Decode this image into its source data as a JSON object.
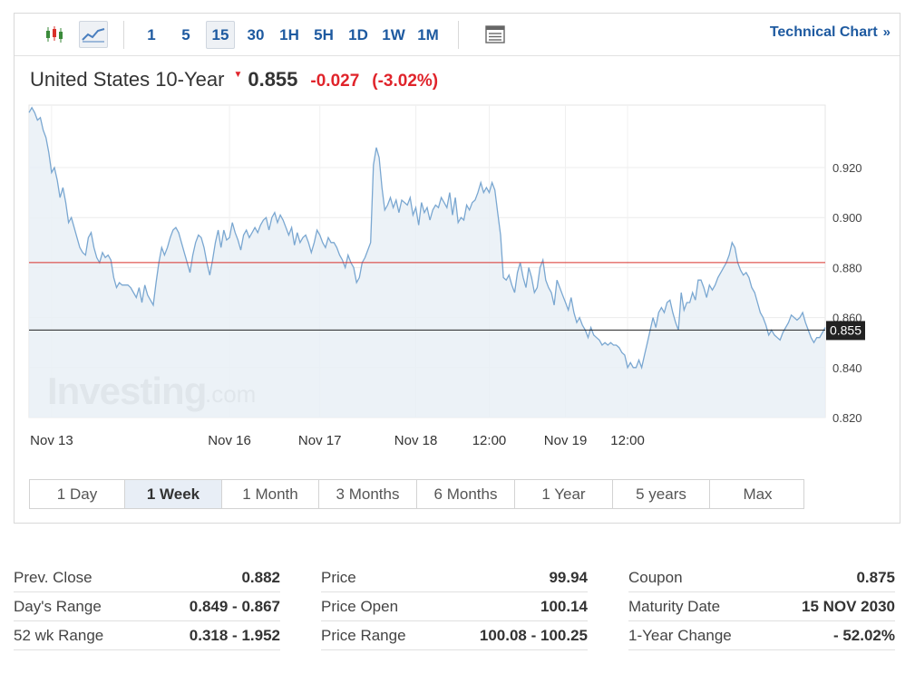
{
  "toolbar": {
    "chart_types": [
      {
        "name": "candlestick-icon",
        "active": false
      },
      {
        "name": "line-chart-icon",
        "active": true
      }
    ],
    "intervals": [
      {
        "label": "1",
        "active": false
      },
      {
        "label": "5",
        "active": false
      },
      {
        "label": "15",
        "active": true
      },
      {
        "label": "30",
        "active": false
      },
      {
        "label": "1H",
        "active": false
      },
      {
        "label": "5H",
        "active": false
      },
      {
        "label": "1D",
        "active": false
      },
      {
        "label": "1W",
        "active": false
      },
      {
        "label": "1M",
        "active": false
      }
    ],
    "table_icon": "table-icon",
    "technical_chart_label": "Technical Chart",
    "technical_chart_arrow": "»"
  },
  "header": {
    "name": "United States 10-Year",
    "price": "0.855",
    "change": "-0.027",
    "change_pct": "(-3.02%)",
    "direction_icon": "down-triangle-icon"
  },
  "chart_data": {
    "type": "area",
    "title": "",
    "xlabel": "",
    "ylabel": "",
    "ylim": [
      0.82,
      0.945
    ],
    "yticks": [
      0.82,
      0.84,
      0.86,
      0.88,
      0.9,
      0.92
    ],
    "ytick_labels": [
      "0.820",
      "0.840",
      "0.860",
      "0.880",
      "0.900",
      "0.920"
    ],
    "x_tick_labels": [
      {
        "label": "Nov 13",
        "index": 8
      },
      {
        "label": "Nov 16",
        "index": 71
      },
      {
        "label": "Nov 17",
        "index": 103
      },
      {
        "label": "Nov 18",
        "index": 137
      },
      {
        "label": "12:00",
        "index": 163
      },
      {
        "label": "Nov 19",
        "index": 190
      },
      {
        "label": "12:00",
        "index": 212
      }
    ],
    "reference_lines": [
      {
        "name": "prev-close-line",
        "value": 0.882,
        "color": "#d9302b"
      },
      {
        "name": "last-price-line",
        "value": 0.855,
        "color": "#222222"
      }
    ],
    "last_price_label": "0.855",
    "grid": true,
    "watermark": {
      "brand": "Investing",
      "suffix": ".com"
    },
    "line_color": "#7aa7d1",
    "fill_color": "#e9f0f6",
    "values": [
      0.942,
      0.944,
      0.942,
      0.939,
      0.94,
      0.935,
      0.932,
      0.926,
      0.918,
      0.92,
      0.915,
      0.908,
      0.912,
      0.906,
      0.898,
      0.9,
      0.896,
      0.892,
      0.888,
      0.886,
      0.885,
      0.892,
      0.894,
      0.888,
      0.884,
      0.882,
      0.886,
      0.884,
      0.885,
      0.883,
      0.876,
      0.872,
      0.874,
      0.873,
      0.873,
      0.873,
      0.872,
      0.87,
      0.868,
      0.872,
      0.866,
      0.873,
      0.869,
      0.867,
      0.865,
      0.874,
      0.882,
      0.888,
      0.885,
      0.888,
      0.892,
      0.895,
      0.896,
      0.894,
      0.89,
      0.886,
      0.882,
      0.878,
      0.885,
      0.89,
      0.893,
      0.892,
      0.888,
      0.882,
      0.877,
      0.883,
      0.89,
      0.895,
      0.888,
      0.895,
      0.891,
      0.892,
      0.898,
      0.894,
      0.891,
      0.887,
      0.893,
      0.895,
      0.892,
      0.894,
      0.896,
      0.894,
      0.897,
      0.899,
      0.9,
      0.895,
      0.9,
      0.902,
      0.898,
      0.901,
      0.899,
      0.896,
      0.893,
      0.896,
      0.889,
      0.894,
      0.89,
      0.892,
      0.893,
      0.89,
      0.886,
      0.89,
      0.895,
      0.893,
      0.89,
      0.888,
      0.892,
      0.89,
      0.89,
      0.888,
      0.885,
      0.883,
      0.88,
      0.885,
      0.882,
      0.88,
      0.874,
      0.876,
      0.882,
      0.884,
      0.887,
      0.89,
      0.921,
      0.928,
      0.924,
      0.912,
      0.903,
      0.905,
      0.908,
      0.904,
      0.907,
      0.902,
      0.907,
      0.906,
      0.905,
      0.908,
      0.901,
      0.904,
      0.897,
      0.906,
      0.902,
      0.904,
      0.899,
      0.903,
      0.905,
      0.904,
      0.908,
      0.906,
      0.904,
      0.91,
      0.901,
      0.908,
      0.898,
      0.9,
      0.899,
      0.905,
      0.903,
      0.906,
      0.907,
      0.91,
      0.914,
      0.91,
      0.912,
      0.91,
      0.914,
      0.911,
      0.902,
      0.893,
      0.876,
      0.875,
      0.877,
      0.873,
      0.87,
      0.878,
      0.882,
      0.876,
      0.872,
      0.88,
      0.876,
      0.87,
      0.872,
      0.88,
      0.883,
      0.875,
      0.872,
      0.87,
      0.865,
      0.875,
      0.872,
      0.869,
      0.866,
      0.863,
      0.868,
      0.862,
      0.858,
      0.86,
      0.857,
      0.855,
      0.852,
      0.856,
      0.853,
      0.852,
      0.851,
      0.849,
      0.85,
      0.849,
      0.85,
      0.849,
      0.849,
      0.848,
      0.846,
      0.845,
      0.84,
      0.842,
      0.84,
      0.84,
      0.843,
      0.84,
      0.845,
      0.85,
      0.855,
      0.86,
      0.856,
      0.862,
      0.864,
      0.862,
      0.866,
      0.867,
      0.862,
      0.858,
      0.855,
      0.87,
      0.863,
      0.866,
      0.866,
      0.87,
      0.867,
      0.875,
      0.875,
      0.872,
      0.868,
      0.873,
      0.871,
      0.873,
      0.876,
      0.878,
      0.88,
      0.882,
      0.885,
      0.89,
      0.888,
      0.882,
      0.879,
      0.877,
      0.878,
      0.876,
      0.872,
      0.87,
      0.866,
      0.862,
      0.86,
      0.857,
      0.853,
      0.855,
      0.853,
      0.852,
      0.851,
      0.854,
      0.856,
      0.858,
      0.861,
      0.86,
      0.859,
      0.86,
      0.862,
      0.858,
      0.855,
      0.852,
      0.85,
      0.852,
      0.852,
      0.854,
      0.856
    ]
  },
  "range_buttons": [
    {
      "label": "1 Day",
      "active": false
    },
    {
      "label": "1 Week",
      "active": true
    },
    {
      "label": "1 Month",
      "active": false
    },
    {
      "label": "3 Months",
      "active": false
    },
    {
      "label": "6 Months",
      "active": false
    },
    {
      "label": "1 Year",
      "active": false
    },
    {
      "label": "5 years",
      "active": false
    },
    {
      "label": "Max",
      "active": false
    }
  ],
  "stats": [
    [
      {
        "label": "Prev. Close",
        "value": "0.882"
      },
      {
        "label": "Day's Range",
        "value": "0.849 - 0.867"
      },
      {
        "label": "52 wk Range",
        "value": "0.318 - 1.952"
      }
    ],
    [
      {
        "label": "Price",
        "value": "99.94"
      },
      {
        "label": "Price Open",
        "value": "100.14"
      },
      {
        "label": "Price Range",
        "value": "100.08 - 100.25"
      }
    ],
    [
      {
        "label": "Coupon",
        "value": "0.875"
      },
      {
        "label": "Maturity Date",
        "value": "15 NOV 2030"
      },
      {
        "label": "1-Year Change",
        "value": "- 52.02%"
      }
    ]
  ]
}
